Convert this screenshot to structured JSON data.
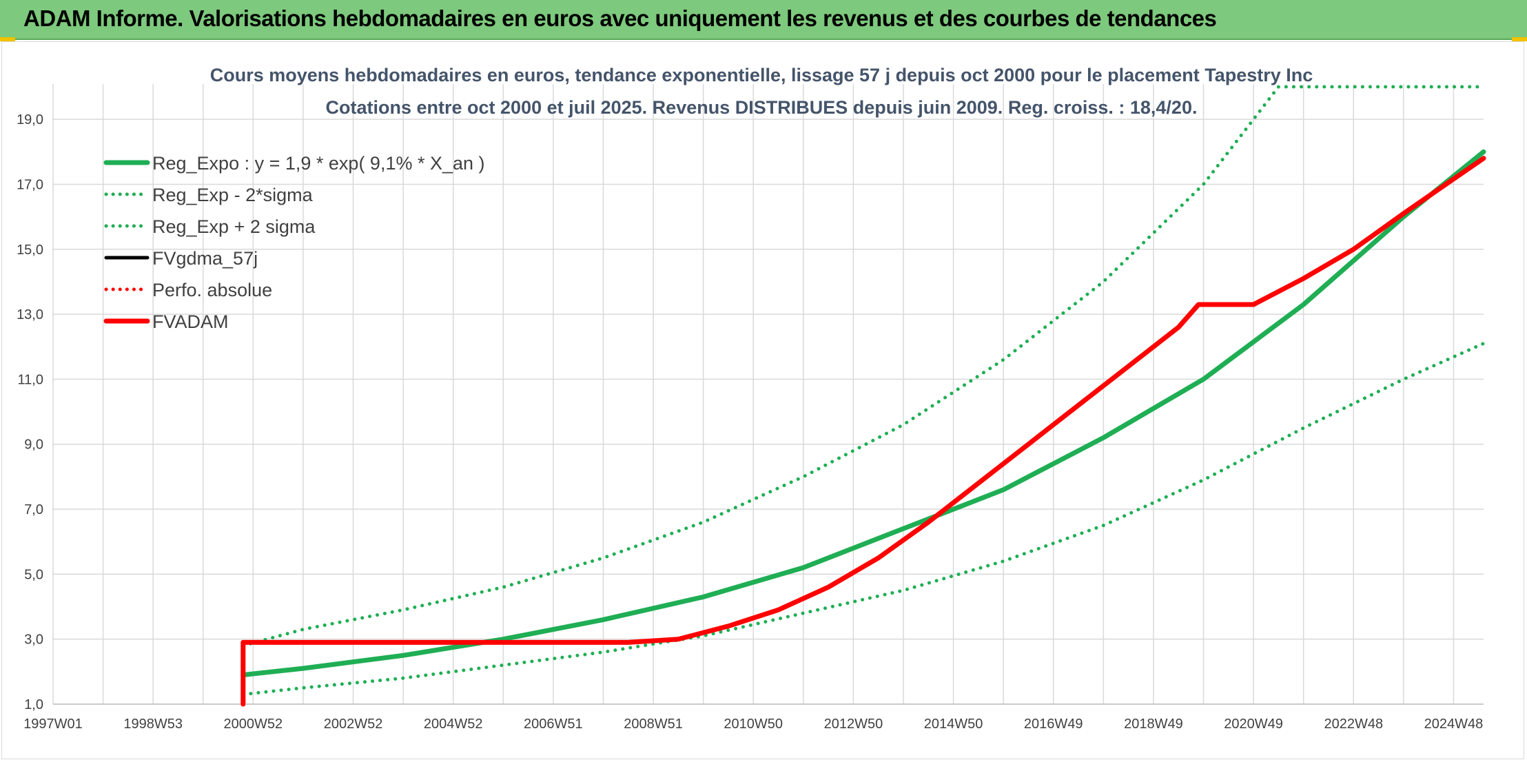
{
  "banner": {
    "title": "ADAM Informe. Valorisations hebdomadaires en euros avec uniquement les revenus et des courbes de tendances"
  },
  "colors": {
    "banner": "#7dc97d",
    "trend_green": "#1fae54",
    "adam_red": "#ff0000",
    "black_series": "#000000",
    "grid": "#d9d9d9",
    "title_text": "#44546a"
  },
  "chart_data": {
    "type": "line",
    "title_lines": [
      "Cours moyens hebdomadaires en euros, tendance exponentielle, lissage 57 j depuis oct 2000 pour le placement Tapestry Inc",
      "Cotations entre oct 2000 et juil 2025. Revenus DISTRIBUES depuis juin 2009. Reg. croiss. : 18,4/20."
    ],
    "x_ticks": [
      "1997W01",
      "1998W53",
      "2000W52",
      "2002W52",
      "2004W52",
      "2006W51",
      "2008W51",
      "2010W50",
      "2012W50",
      "2014W50",
      "2016W49",
      "2018W49",
      "2020W49",
      "2022W48",
      "2024W48"
    ],
    "x_range_years": [
      1997.0,
      2025.6
    ],
    "ylim": [
      1.0,
      20.0
    ],
    "y_ticks": [
      "1,0",
      "3,0",
      "5,0",
      "7,0",
      "9,0",
      "11,0",
      "13,0",
      "15,0",
      "17,0",
      "19,0"
    ],
    "grid": true,
    "legend_position": "top-left",
    "series": [
      {
        "name": "Reg_Expo : y = 1,9 * exp( 9,1% *  X_an )",
        "style": "solid-thick",
        "color": "#1fae54",
        "x": [
          2000.8,
          2002.0,
          2004.0,
          2006.0,
          2008.0,
          2010.0,
          2012.0,
          2014.0,
          2016.0,
          2018.0,
          2020.0,
          2022.0,
          2024.0,
          2025.6
        ],
        "y": [
          1.9,
          2.1,
          2.5,
          3.0,
          3.6,
          4.3,
          5.2,
          6.4,
          7.6,
          9.2,
          11.0,
          13.3,
          16.0,
          18.0
        ]
      },
      {
        "name": "Reg_Exp - 2*sigma",
        "style": "dotted",
        "color": "#1fae54",
        "x": [
          2000.8,
          2002.0,
          2004.0,
          2006.0,
          2008.0,
          2010.0,
          2012.0,
          2014.0,
          2016.0,
          2018.0,
          2020.0,
          2022.0,
          2024.0,
          2025.6
        ],
        "y": [
          1.3,
          1.5,
          1.8,
          2.2,
          2.6,
          3.1,
          3.8,
          4.5,
          5.4,
          6.5,
          7.9,
          9.5,
          11.0,
          12.1
        ]
      },
      {
        "name": "Reg_Exp + 2 sigma",
        "style": "dotted",
        "color": "#1fae54",
        "x": [
          2000.8,
          2002.0,
          2004.0,
          2006.0,
          2008.0,
          2010.0,
          2012.0,
          2014.0,
          2016.0,
          2018.0,
          2020.0,
          2021.5,
          2025.6
        ],
        "y": [
          2.8,
          3.3,
          3.9,
          4.6,
          5.5,
          6.6,
          8.0,
          9.6,
          11.6,
          14.0,
          17.0,
          20.0,
          20.0
        ]
      },
      {
        "name": "FVgdma_57j",
        "style": "solid",
        "color": "#000000",
        "x": [
          2000.8,
          2000.8,
          2008.5,
          2009.5,
          2010.5,
          2011.5,
          2012.5,
          2013.5,
          2014.5,
          2015.5,
          2016.5,
          2017.5,
          2018.5,
          2019.5,
          2019.9,
          2021.0,
          2022.0,
          2023.0,
          2024.0,
          2025.6
        ],
        "y": [
          1.0,
          2.9,
          2.9,
          3.0,
          3.4,
          3.9,
          4.6,
          5.5,
          6.6,
          7.8,
          9.0,
          10.2,
          11.4,
          12.6,
          13.3,
          13.3,
          14.1,
          15.0,
          16.1,
          17.8
        ]
      },
      {
        "name": "Perfo. absolue",
        "style": "dotted",
        "color": "#ff0000",
        "x": [
          2000.8,
          2000.8,
          2008.5,
          2009.5,
          2010.5,
          2011.5,
          2012.5,
          2013.5,
          2014.5,
          2015.5,
          2016.5,
          2017.5,
          2018.5,
          2019.5,
          2019.9,
          2021.0,
          2022.0,
          2023.0,
          2024.0,
          2025.6
        ],
        "y": [
          1.0,
          2.9,
          2.9,
          3.0,
          3.4,
          3.9,
          4.6,
          5.5,
          6.6,
          7.8,
          9.0,
          10.2,
          11.4,
          12.6,
          13.3,
          13.3,
          14.1,
          15.0,
          16.1,
          17.8
        ]
      },
      {
        "name": "FVADAM",
        "style": "solid-thick",
        "color": "#ff0000",
        "x": [
          2000.8,
          2000.8,
          2008.5,
          2009.5,
          2010.5,
          2011.5,
          2012.5,
          2013.5,
          2014.5,
          2015.5,
          2016.5,
          2017.5,
          2018.5,
          2019.5,
          2019.9,
          2021.0,
          2022.0,
          2023.0,
          2024.0,
          2025.6
        ],
        "y": [
          1.0,
          2.9,
          2.9,
          3.0,
          3.4,
          3.9,
          4.6,
          5.5,
          6.6,
          7.8,
          9.0,
          10.2,
          11.4,
          12.6,
          13.3,
          13.3,
          14.1,
          15.0,
          16.1,
          17.8
        ]
      }
    ]
  }
}
